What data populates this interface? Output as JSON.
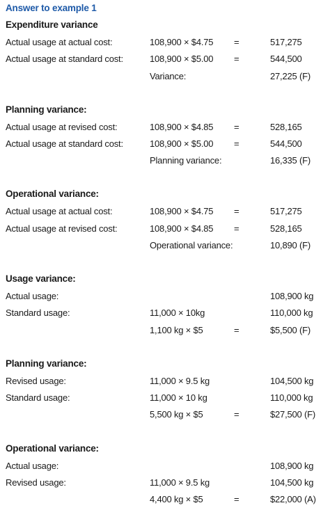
{
  "title": "Answer to example 1",
  "sections": [
    {
      "heading": "Expenditure variance",
      "rows": [
        {
          "label": "Actual usage at actual cost:",
          "calc": "108,900 × $4.75",
          "eq": "=",
          "result": "517,275"
        },
        {
          "label": "Actual usage at standard cost:",
          "calc": "108,900 × $5.00",
          "eq": "=",
          "result": "544,500"
        },
        {
          "calc": "Variance:",
          "result": "27,225 (F)"
        }
      ]
    },
    {
      "heading": "Planning variance:",
      "rows": [
        {
          "label": "Actual usage at revised cost:",
          "calc": "108,900 × $4.85",
          "eq": "=",
          "result": "528,165"
        },
        {
          "label": "Actual usage at standard cost:",
          "calc": "108,900 × $5.00",
          "eq": "=",
          "result": "544,500"
        },
        {
          "calc": "Planning variance:",
          "result": "16,335 (F)"
        }
      ]
    },
    {
      "heading": "Operational variance:",
      "rows": [
        {
          "label": "Actual usage at actual cost:",
          "calc": "108,900 × $4.75",
          "eq": "=",
          "result": "517,275"
        },
        {
          "label": "Actual usage at revised cost:",
          "calc": "108,900 × $4.85",
          "eq": "=",
          "result": "528,165"
        },
        {
          "calc": "Operational variance:",
          "result": "10,890 (F)"
        }
      ]
    },
    {
      "heading": "Usage variance:",
      "rows": [
        {
          "label": "Actual usage:",
          "result": "108,900 kg"
        },
        {
          "label": "Standard usage:",
          "calc": "11,000 × 10kg",
          "result": "110,000 kg"
        },
        {
          "calc": "1,100 kg × $5",
          "eq": "=",
          "result": "$5,500 (F)"
        }
      ]
    },
    {
      "heading": "Planning variance:",
      "rows": [
        {
          "label": "Revised usage:",
          "calc": "11,000 × 9.5 kg",
          "result": "104,500 kg"
        },
        {
          "label": "Standard usage:",
          "calc": "11,000 × 10 kg",
          "result": "110,000 kg"
        },
        {
          "calc": "5,500 kg × $5",
          "eq": "=",
          "result": "$27,500 (F)"
        }
      ]
    },
    {
      "heading": "Operational variance:",
      "rows": [
        {
          "label": "Actual usage:",
          "result": "108,900 kg"
        },
        {
          "label": "Revised usage:",
          "calc": "11,000 × 9.5 kg",
          "result": "104,500 kg"
        },
        {
          "calc": "4,400 kg × $5",
          "eq": "=",
          "result": "$22,000 (A)"
        }
      ]
    }
  ]
}
